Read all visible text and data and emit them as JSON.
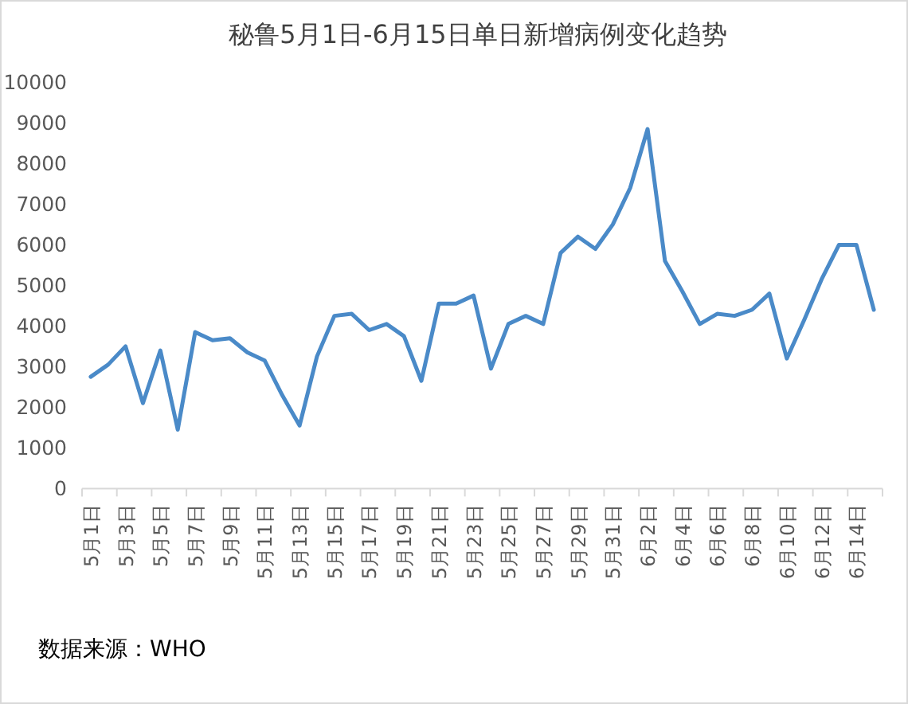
{
  "chart_data": {
    "type": "line",
    "title": "秘鲁5月1日-6月15日单日新增病例变化趋势",
    "categories": [
      "5月1日",
      null,
      "5月3日",
      null,
      "5月5日",
      null,
      "5月7日",
      null,
      "5月9日",
      null,
      "5月11日",
      null,
      "5月13日",
      null,
      "5月15日",
      null,
      "5月17日",
      null,
      "5月19日",
      null,
      "5月21日",
      null,
      "5月23日",
      null,
      "5月25日",
      null,
      "5月27日",
      null,
      "5月29日",
      null,
      "5月31日",
      null,
      "6月2日",
      null,
      "6月4日",
      null,
      "6月6日",
      null,
      "6月8日",
      null,
      "6月10日",
      null,
      "6月12日",
      null,
      "6月14日",
      null
    ],
    "values": [
      2750,
      3050,
      3500,
      2100,
      3400,
      1450,
      3850,
      3650,
      3700,
      3350,
      3150,
      2300,
      1550,
      3250,
      4250,
      4300,
      3900,
      4050,
      3750,
      2650,
      4550,
      4550,
      4750,
      2950,
      4050,
      4250,
      4050,
      5800,
      6200,
      5900,
      6500,
      7400,
      8850,
      5600,
      4850,
      4050,
      4300,
      4250,
      4400,
      4800,
      3200,
      4150,
      5150,
      6000,
      6000,
      4400
    ],
    "color": "#4a8ac8",
    "ylim": [
      0,
      10000
    ],
    "yticks": [
      0,
      1000,
      2000,
      3000,
      4000,
      5000,
      6000,
      7000,
      8000,
      9000,
      10000
    ],
    "grid": false,
    "legend": false,
    "marker": "none",
    "line_style": "solid",
    "annotations": [
      "数据来源：WHO"
    ]
  }
}
